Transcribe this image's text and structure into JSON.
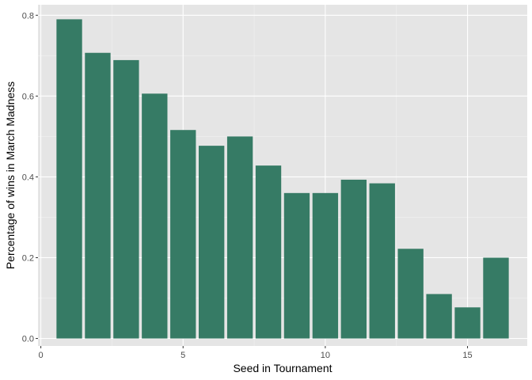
{
  "chart_data": {
    "type": "bar",
    "x": [
      1,
      2,
      3,
      4,
      5,
      6,
      7,
      8,
      9,
      10,
      11,
      12,
      13,
      14,
      15,
      16
    ],
    "values": [
      0.79,
      0.707,
      0.689,
      0.606,
      0.516,
      0.477,
      0.5,
      0.428,
      0.36,
      0.36,
      0.393,
      0.384,
      0.222,
      0.11,
      0.077,
      0.2
    ],
    "xlabel": "Seed in Tournament",
    "ylabel": "Percentage of wins in March Madness",
    "xlim": [
      -0.1,
      17.1
    ],
    "ylim": [
      -0.0185,
      0.826
    ],
    "xticks": [
      0,
      5,
      10,
      15
    ],
    "yticks": [
      0.0,
      0.2,
      0.4,
      0.6,
      0.8
    ],
    "xtick_labels": [
      "0",
      "5",
      "10",
      "15"
    ],
    "ytick_labels": [
      "0.0",
      "0.2",
      "0.4",
      "0.6",
      "0.8"
    ],
    "bar_color": "#367b65",
    "panel_background": "#e5e5e5",
    "grid": true,
    "legend": "none"
  }
}
